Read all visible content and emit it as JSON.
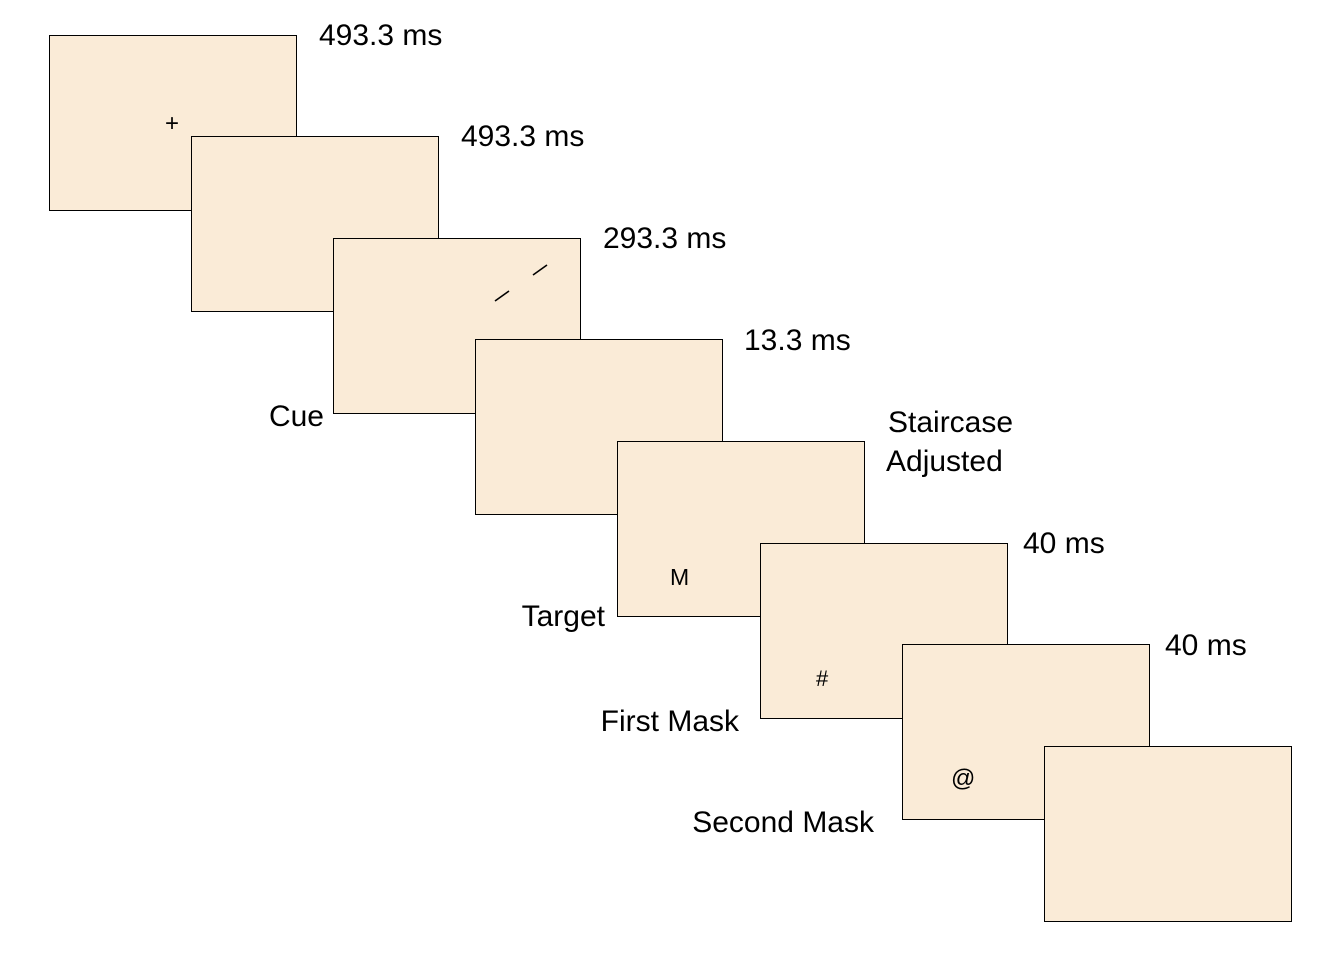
{
  "colors": {
    "frame_fill": "#faebd7",
    "frame_border": "#000000",
    "text": "#000000"
  },
  "frames": [
    {
      "name": "fixation",
      "symbol": "+",
      "duration": "493.3 ms",
      "caption": ""
    },
    {
      "name": "blank-1",
      "symbol": "",
      "duration": "493.3 ms",
      "caption": ""
    },
    {
      "name": "cue",
      "symbol": "",
      "duration": "293.3 ms",
      "caption": "Cue"
    },
    {
      "name": "blank-2",
      "symbol": "",
      "duration": "13.3 ms",
      "caption": ""
    },
    {
      "name": "target",
      "symbol": "M",
      "duration_lines": [
        "Staircase",
        "Adjusted"
      ],
      "caption": "Target"
    },
    {
      "name": "first-mask",
      "symbol": "#",
      "duration": "40 ms",
      "caption": "First Mask"
    },
    {
      "name": "second-mask",
      "symbol": "@",
      "duration": "40 ms",
      "caption": "Second Mask"
    },
    {
      "name": "response",
      "symbol": "",
      "duration": "",
      "caption": ""
    }
  ]
}
